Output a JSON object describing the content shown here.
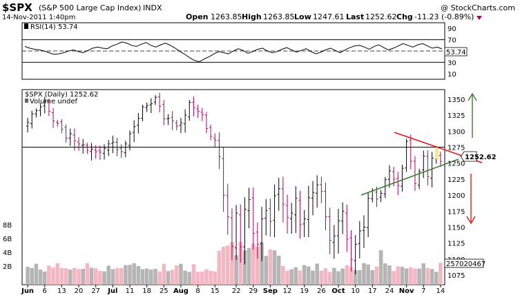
{
  "header": {
    "symbol": "$SPX",
    "name": "(S&P 500 Large Cap Index)",
    "exchange": "INDX",
    "datetime": "14-Nov-2011 1:40pm",
    "open_label": "Open",
    "open": "1263.85",
    "high_label": "High",
    "high": "1263.85",
    "low_label": "Low",
    "low": "1247.61",
    "last_label": "Last",
    "last": "1252.62",
    "chg_label": "Chg",
    "chg": "-11.23 (-0.89%)",
    "copyright": "@ StockCharts.com"
  },
  "rsi_panel": {
    "label": "RSI(14) 53.74",
    "value_tag": "53.74"
  },
  "price_panel": {
    "legend": "$SPX (Daily) 1252.62",
    "volume_legend": "Volume undef",
    "last_tag": "1252.62",
    "volume_tag": "257020467"
  },
  "colors": {
    "up_bar": "#000000",
    "down_bar": "#b0005a",
    "vol_up": "#b5b5b5",
    "vol_down": "#f4b6c2",
    "trend_red": "#e81414",
    "trend_green": "#3a7a2e",
    "arrow_green": "#3a7a2e",
    "arrow_red": "#e81414",
    "rsi_oversold_fill": "#8a5a5a"
  },
  "chart_data": [
    {
      "type": "line",
      "title": "RSI(14) 53.74",
      "ylim": [
        0,
        100
      ],
      "y_ticks": [
        90,
        70,
        50,
        30,
        10
      ],
      "reference_lines": [
        70,
        50,
        30
      ],
      "values": [
        58,
        55,
        53,
        52,
        50,
        47,
        44,
        45,
        47,
        50,
        52,
        49,
        47,
        51,
        55,
        57,
        55,
        54,
        59,
        62,
        66,
        64,
        60,
        58,
        62,
        65,
        60,
        57,
        61,
        64,
        60,
        55,
        49,
        44,
        38,
        33,
        31,
        36,
        40,
        45,
        49,
        47,
        45,
        50,
        54,
        51,
        46,
        49,
        53,
        55,
        50,
        47,
        49,
        53,
        56,
        52,
        48,
        51,
        54,
        49,
        45,
        48,
        52,
        55,
        51,
        47,
        52,
        56,
        59,
        60,
        57,
        53,
        58,
        61,
        56,
        52,
        55,
        59,
        63,
        60,
        57,
        61,
        63,
        59,
        55,
        57,
        53.74
      ]
    },
    {
      "type": "bar",
      "title": "$SPX (Daily) 1252.62",
      "subtype": "ohlc",
      "ylim": [
        1060,
        1365
      ],
      "y_ticks": [
        1350,
        1325,
        1300,
        1275,
        1250,
        1225,
        1200,
        1175,
        1150,
        1125,
        1100,
        1075
      ],
      "x_tick_labels": [
        "Jun",
        "6",
        "13",
        "20",
        "27",
        "Jul",
        "11",
        "18",
        "25",
        "Aug",
        "8",
        "15",
        "22",
        "29",
        "Sep",
        "12",
        "19",
        "26",
        "Oct",
        "10",
        "17",
        "24",
        "Nov",
        "7",
        "14"
      ],
      "horizontal_line": 1275,
      "closes": [
        1314,
        1327,
        1332,
        1338,
        1346,
        1331,
        1316,
        1312,
        1303,
        1289,
        1296,
        1285,
        1280,
        1279,
        1270,
        1272,
        1268,
        1267,
        1273,
        1280,
        1283,
        1271,
        1268,
        1280,
        1296,
        1307,
        1320,
        1338,
        1340,
        1343,
        1353,
        1339,
        1319,
        1320,
        1316,
        1308,
        1313,
        1325,
        1345,
        1337,
        1331,
        1326,
        1304,
        1292,
        1286,
        1260,
        1200,
        1166,
        1120,
        1172,
        1119,
        1178,
        1193,
        1140,
        1123,
        1163,
        1176,
        1159,
        1199,
        1210,
        1186,
        1165,
        1172,
        1195,
        1154,
        1163,
        1196,
        1204,
        1216,
        1206,
        1166,
        1129,
        1136,
        1160,
        1175,
        1131,
        1099,
        1123,
        1144,
        1150,
        1195,
        1207,
        1194,
        1203,
        1224,
        1238,
        1225,
        1215,
        1242,
        1284,
        1253,
        1218,
        1237,
        1261,
        1229,
        1258,
        1263,
        1252.62
      ],
      "volume": {
        "label": "Volume undef",
        "y_ticks": [
          "8B",
          "6B",
          "4B",
          "2B"
        ],
        "last_tag": "257020467"
      }
    }
  ]
}
